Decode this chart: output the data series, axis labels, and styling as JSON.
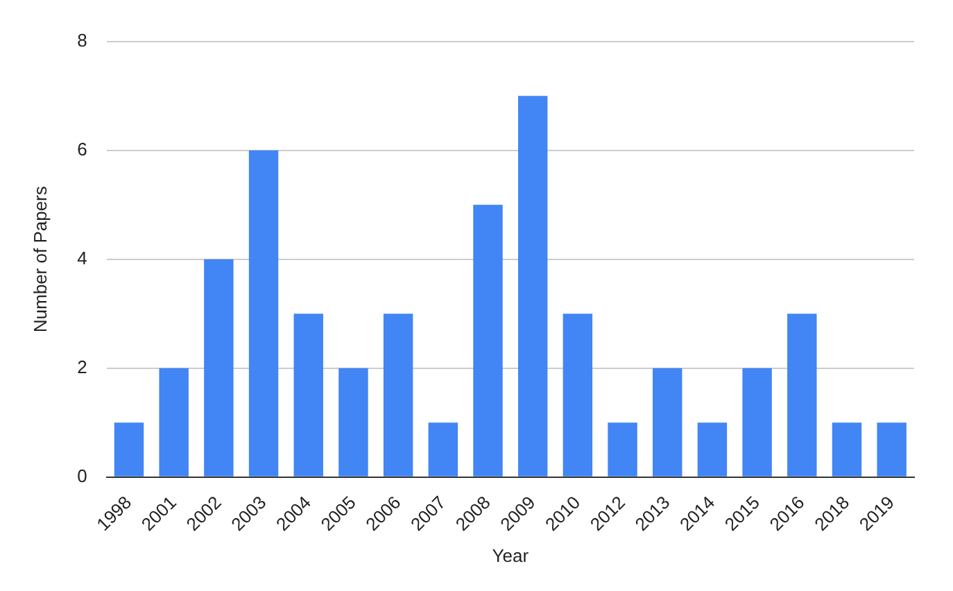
{
  "chart_data": {
    "type": "bar",
    "xlabel": "Year",
    "ylabel": "Number of Papers",
    "categories": [
      "1998",
      "2001",
      "2002",
      "2003",
      "2004",
      "2005",
      "2006",
      "2007",
      "2008",
      "2009",
      "2010",
      "2012",
      "2013",
      "2014",
      "2015",
      "2016",
      "2018",
      "2019"
    ],
    "values": [
      1,
      2,
      4,
      6,
      3,
      2,
      3,
      1,
      5,
      7,
      3,
      1,
      2,
      1,
      2,
      3,
      1,
      1
    ],
    "color": "#4285f4",
    "ylim": [
      0,
      8
    ],
    "yticks": [
      0,
      2,
      4,
      6,
      8
    ],
    "grid": "y"
  }
}
